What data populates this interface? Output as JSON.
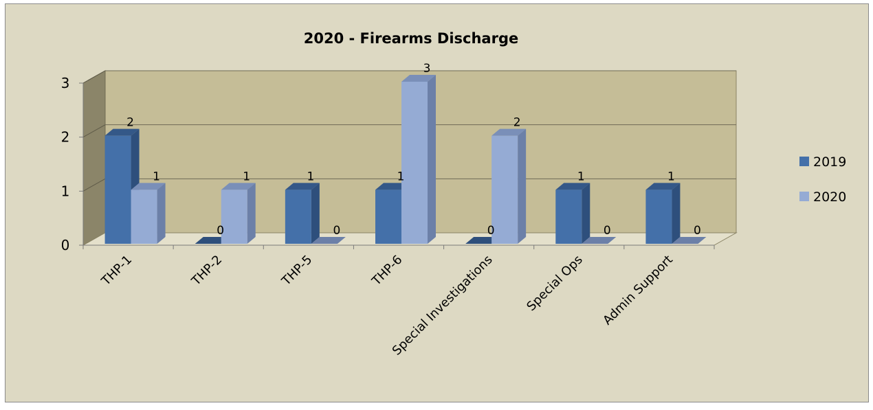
{
  "chart_data": {
    "type": "bar",
    "title": "2020 - Firearms Discharge",
    "categories": [
      "THP-1",
      "THP-2",
      "THP-5",
      "THP-6",
      "Special Investigations",
      "Special Ops",
      "Admin Support"
    ],
    "series": [
      {
        "name": "2019",
        "values": [
          2,
          0,
          1,
          1,
          0,
          1,
          1
        ],
        "color": "#4470a9"
      },
      {
        "name": "2020",
        "values": [
          1,
          1,
          0,
          3,
          2,
          0,
          0
        ],
        "color": "#95abd4"
      }
    ],
    "ylim": [
      0,
      3
    ],
    "yticks": [
      "0",
      "1",
      "2",
      "3"
    ],
    "grid": true,
    "legend_position": "right",
    "data_labels": true,
    "colors": {
      "chart_background": "#ddd9c3",
      "back_wall": "#c5bd97",
      "side_wall": "#8b8569",
      "floor": "#e4e0cb"
    }
  }
}
